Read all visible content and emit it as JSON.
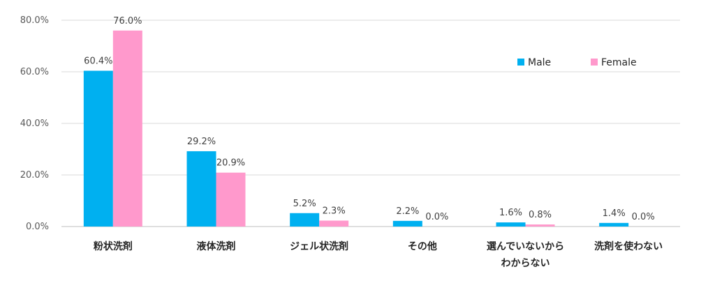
{
  "chart_data": {
    "type": "bar",
    "categories": [
      [
        "粉状洗剤"
      ],
      [
        "液体洗剤"
      ],
      [
        "ジェル状洗剤"
      ],
      [
        "その他"
      ],
      [
        "選んでいないから",
        "わからない"
      ],
      [
        "洗剤を使わない"
      ]
    ],
    "series": [
      {
        "name": "Male",
        "color": "#00b0f0",
        "values": [
          60.4,
          29.2,
          5.2,
          2.2,
          1.6,
          1.4
        ],
        "labels": [
          "60.4%",
          "29.2%",
          "5.2%",
          "2.2%",
          "1.6%",
          "1.4%"
        ]
      },
      {
        "name": "Female",
        "color": "#ff99cc",
        "values": [
          76.0,
          20.9,
          2.3,
          0.0,
          0.8,
          0.0
        ],
        "labels": [
          "76.0%",
          "20.9%",
          "2.3%",
          "0.0%",
          "0.8%",
          "0.0%"
        ]
      }
    ],
    "yticks": [
      "0.0%",
      "20.0%",
      "40.0%",
      "60.0%",
      "80.0%"
    ],
    "ylim": [
      0,
      80
    ],
    "legend_position": "top-right",
    "grid": true
  }
}
